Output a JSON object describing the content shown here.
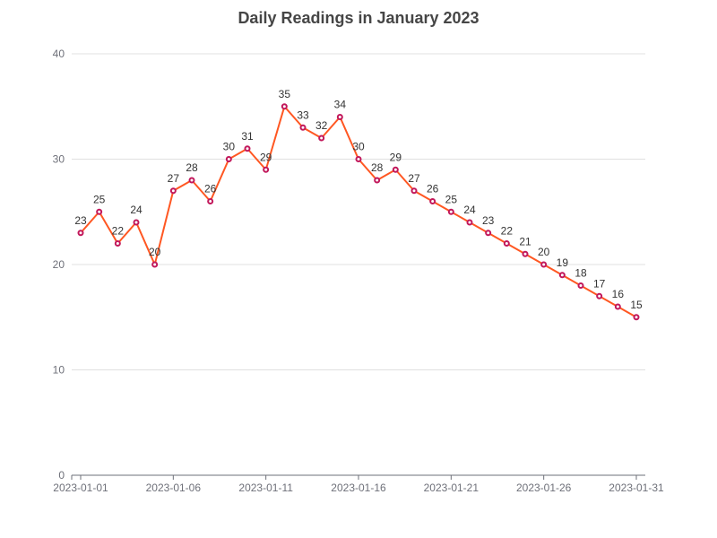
{
  "chart_data": {
    "type": "line",
    "title": "Daily Readings in January 2023",
    "xlabel": "",
    "ylabel": "",
    "x": [
      "2023-01-01",
      "2023-01-02",
      "2023-01-03",
      "2023-01-04",
      "2023-01-05",
      "2023-01-06",
      "2023-01-07",
      "2023-01-08",
      "2023-01-09",
      "2023-01-10",
      "2023-01-11",
      "2023-01-12",
      "2023-01-13",
      "2023-01-14",
      "2023-01-15",
      "2023-01-16",
      "2023-01-17",
      "2023-01-18",
      "2023-01-19",
      "2023-01-20",
      "2023-01-21",
      "2023-01-22",
      "2023-01-23",
      "2023-01-24",
      "2023-01-25",
      "2023-01-26",
      "2023-01-27",
      "2023-01-28",
      "2023-01-29",
      "2023-01-30",
      "2023-01-31"
    ],
    "series": [
      {
        "values": [
          23,
          25,
          22,
          24,
          20,
          27,
          28,
          26,
          30,
          31,
          29,
          35,
          33,
          32,
          34,
          30,
          28,
          29,
          27,
          26,
          25,
          24,
          23,
          22,
          21,
          20,
          19,
          18,
          17,
          16,
          15
        ],
        "color": "#ff5722",
        "marker_color": "#c2185b"
      }
    ],
    "ylim": [
      0,
      40
    ],
    "y_ticks": [
      0,
      10,
      20,
      30,
      40
    ],
    "x_tick_labels": [
      "2023-01-01",
      "2023-01-06",
      "2023-01-11",
      "2023-01-16",
      "2023-01-21",
      "2023-01-26",
      "2023-01-31"
    ],
    "grid": true,
    "data_labels": true
  }
}
